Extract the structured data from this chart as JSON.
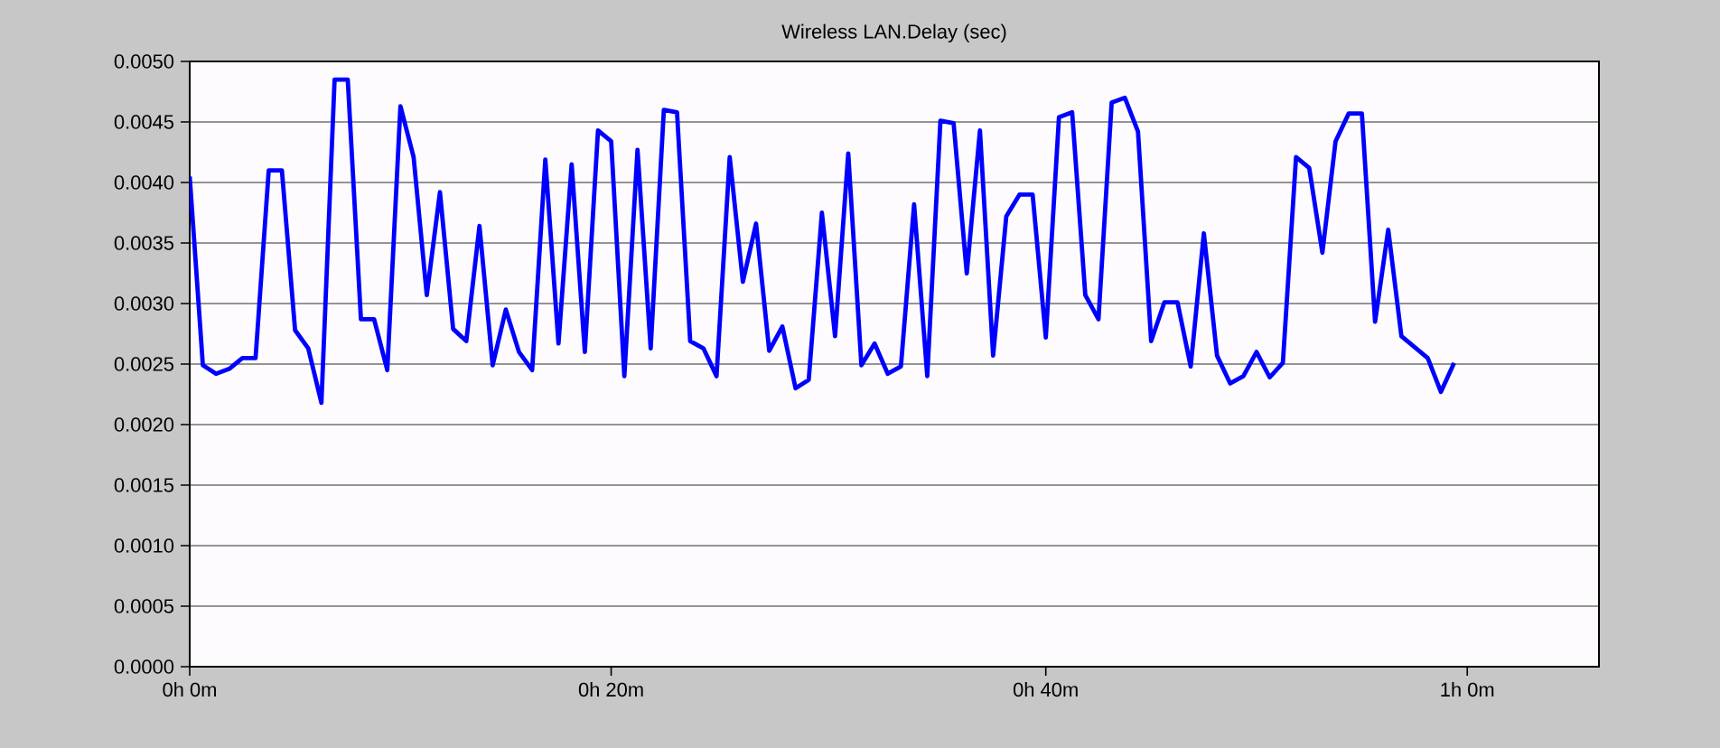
{
  "chart_data": {
    "type": "line",
    "title": "Wireless LAN.Delay (sec)",
    "categories": [
      "0h 0m",
      null,
      null,
      null,
      null,
      null,
      null,
      null,
      null,
      null,
      null,
      null,
      null,
      null,
      null,
      null,
      null,
      null,
      null,
      null,
      null,
      null,
      null,
      null,
      null,
      null,
      null,
      null,
      null,
      null,
      null,
      null,
      "0h 20m",
      null,
      null,
      null,
      null,
      null,
      null,
      null,
      null,
      null,
      null,
      null,
      null,
      null,
      null,
      null,
      null,
      null,
      null,
      null,
      null,
      null,
      null,
      null,
      null,
      null,
      null,
      null,
      null,
      null,
      null,
      null,
      null,
      "0h 40m",
      null,
      null,
      null,
      null,
      null,
      null,
      null,
      null,
      null,
      null,
      null,
      null,
      null,
      null,
      null,
      null,
      null,
      null,
      null,
      null,
      null,
      null,
      null,
      null,
      null,
      null,
      null,
      null,
      null,
      null,
      null,
      "1h 0m",
      null,
      null,
      null,
      null,
      null,
      null,
      null,
      null,
      null,
      null
    ],
    "series": [
      {
        "color": "#0000ff",
        "values": [
          0.00405,
          0.00249,
          0.00242,
          0.00246,
          0.00255,
          0.00255,
          0.0041,
          0.0041,
          0.00278,
          0.00263,
          0.00218,
          0.00485,
          0.00485,
          0.00287,
          0.00287,
          0.00245,
          0.00463,
          0.00421,
          0.00307,
          0.00392,
          0.00279,
          0.00269,
          0.00364,
          0.00249,
          0.00295,
          0.0026,
          0.00245,
          0.00419,
          0.00267,
          0.00415,
          0.0026,
          0.00443,
          0.00434,
          0.0024,
          0.00427,
          0.00263,
          0.0046,
          0.00458,
          0.00269,
          0.00263,
          0.0024,
          0.00421,
          0.00318,
          0.00366,
          0.00261,
          0.00281,
          0.0023,
          0.00237,
          0.00375,
          0.00273,
          0.00424,
          0.00249,
          0.00267,
          0.00242,
          0.00248,
          0.00382,
          0.0024,
          0.00451,
          0.00449,
          0.00325,
          0.00443,
          0.00257,
          0.00372,
          0.0039,
          0.0039,
          0.00272,
          0.00454,
          0.00458,
          0.00307,
          0.00287,
          0.00466,
          0.0047,
          0.00442,
          0.00269,
          0.00301,
          0.00301,
          0.00248,
          0.00358,
          0.00257,
          0.00234,
          0.0024,
          0.0026,
          0.00239,
          0.00251,
          0.00421,
          0.00412,
          0.00342,
          0.00434,
          0.00457,
          0.00457,
          0.00285,
          0.00361,
          0.00273,
          0.00264,
          0.00255,
          0.00227,
          0.00251,
          null,
          null,
          null,
          null,
          null,
          null,
          null,
          null,
          null,
          null,
          null
        ]
      }
    ],
    "ylim": [
      0,
      0.005
    ],
    "yticks": [
      {
        "value": 0,
        "label": "0.0000"
      },
      {
        "value": 0.0005,
        "label": "0.0005"
      },
      {
        "value": 0.001,
        "label": "0.0010"
      },
      {
        "value": 0.0015,
        "label": "0.0015"
      },
      {
        "value": 0.002,
        "label": "0.0020"
      },
      {
        "value": 0.0025,
        "label": "0.0025"
      },
      {
        "value": 0.003,
        "label": "0.0030"
      },
      {
        "value": 0.0035,
        "label": "0.0035"
      },
      {
        "value": 0.004,
        "label": "0.0040"
      },
      {
        "value": 0.0045,
        "label": "0.0045"
      },
      {
        "value": 0.005,
        "label": "0.0050"
      }
    ],
    "grid": "y",
    "marker": "none",
    "line_style": "solid"
  }
}
